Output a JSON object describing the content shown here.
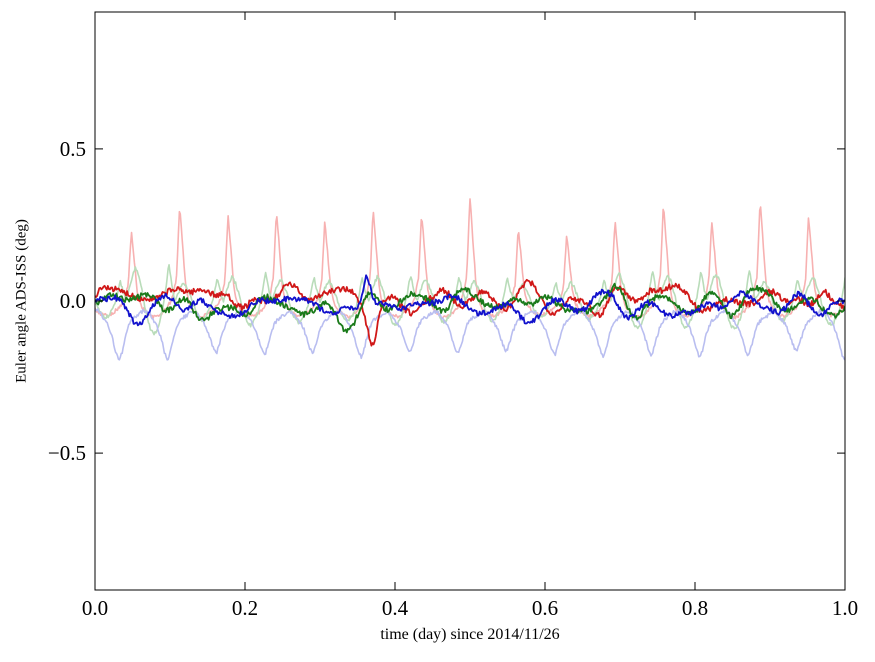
{
  "figure": {
    "background": "#ffffff",
    "frame_color": "#000000"
  },
  "chart_data": {
    "type": "line",
    "title": "",
    "xlabel": "time (day) since 2014/11/26",
    "ylabel": "Euler angle ADS-ISS (deg)",
    "xlim": [
      0.0,
      1.0
    ],
    "ylim": [
      -0.95,
      0.95
    ],
    "xticks": [
      0.0,
      0.2,
      0.4,
      0.6,
      0.8,
      1.0
    ],
    "xtick_labels": [
      "0.0",
      "0.2",
      "0.4",
      "0.6",
      "0.8",
      "1.0"
    ],
    "yticks": [
      0.5,
      0.0,
      -0.5
    ],
    "ytick_labels": [
      "0.5",
      "0.0",
      "−0.5"
    ],
    "grid": false,
    "legend": null,
    "orbital_period_day": 0.0645,
    "series": [
      {
        "name": "faint-red",
        "kind": "periodic",
        "color": "#f7b1b1",
        "linewidth": 1.6,
        "period": 0.0645,
        "phase": 0.0,
        "base": -0.03,
        "cycle_jitter": 0.22,
        "noise_amp": 0.006,
        "samples": 800,
        "seed": 101,
        "waveform": [
          -0.025,
          -0.035,
          -0.045,
          -0.05,
          -0.05,
          -0.045,
          -0.04,
          -0.03,
          -0.02,
          -0.005,
          0.02,
          0.07,
          0.28,
          0.16,
          0.04,
          -0.005
        ]
      },
      {
        "name": "faint-green",
        "kind": "periodic",
        "color": "#b9dcb9",
        "linewidth": 1.6,
        "period": 0.0645,
        "phase": 0.35,
        "base": 0.0,
        "cycle_jitter": 0.4,
        "noise_amp": 0.006,
        "samples": 800,
        "seed": 202,
        "waveform": [
          0.0,
          0.03,
          0.06,
          0.08,
          0.06,
          0.03,
          -0.01,
          -0.045,
          -0.07,
          -0.08,
          -0.07,
          -0.05,
          -0.02,
          0.03,
          0.09,
          0.04
        ]
      },
      {
        "name": "faint-blue",
        "kind": "periodic",
        "color": "#b9bef0",
        "linewidth": 1.6,
        "period": 0.0645,
        "phase": 0.12,
        "base": -0.06,
        "cycle_jitter": 0.18,
        "noise_amp": 0.006,
        "samples": 800,
        "seed": 303,
        "waveform": [
          -0.05,
          -0.04,
          -0.035,
          -0.035,
          -0.045,
          -0.06,
          -0.075,
          -0.095,
          -0.125,
          -0.16,
          -0.18,
          -0.15,
          -0.11,
          -0.08,
          -0.065,
          -0.055
        ]
      },
      {
        "name": "bold-red",
        "kind": "noise",
        "color": "#d01818",
        "linewidth": 1.8,
        "baseline": 0.0,
        "amp": 0.055,
        "smooth": 6,
        "jitter_amp": 0.01,
        "points": 700,
        "seed": 7,
        "ripple_amp": 0.02,
        "ripple_period": 0.0645,
        "ripple_phase": 0.2,
        "events": [
          {
            "x": 0.025,
            "y": 0.07,
            "w": 0.015
          },
          {
            "x": 0.37,
            "y": -0.12,
            "w": 0.006
          }
        ]
      },
      {
        "name": "bold-green",
        "kind": "noise",
        "color": "#1a7a1a",
        "linewidth": 1.8,
        "baseline": -0.005,
        "amp": 0.042,
        "smooth": 6,
        "jitter_amp": 0.009,
        "points": 700,
        "seed": 53,
        "ripple_amp": 0.016,
        "ripple_period": 0.0645,
        "ripple_phase": 0.55,
        "events": [
          {
            "x": 0.335,
            "y": -0.05,
            "w": 0.012
          }
        ]
      },
      {
        "name": "bold-blue",
        "kind": "noise",
        "color": "#1111cc",
        "linewidth": 1.8,
        "baseline": -0.01,
        "amp": 0.05,
        "smooth": 6,
        "jitter_amp": 0.009,
        "points": 700,
        "seed": 89,
        "ripple_amp": 0.016,
        "ripple_period": 0.0645,
        "ripple_phase": 0.85,
        "events": [
          {
            "x": 0.362,
            "y": 0.09,
            "w": 0.005
          }
        ]
      }
    ]
  }
}
